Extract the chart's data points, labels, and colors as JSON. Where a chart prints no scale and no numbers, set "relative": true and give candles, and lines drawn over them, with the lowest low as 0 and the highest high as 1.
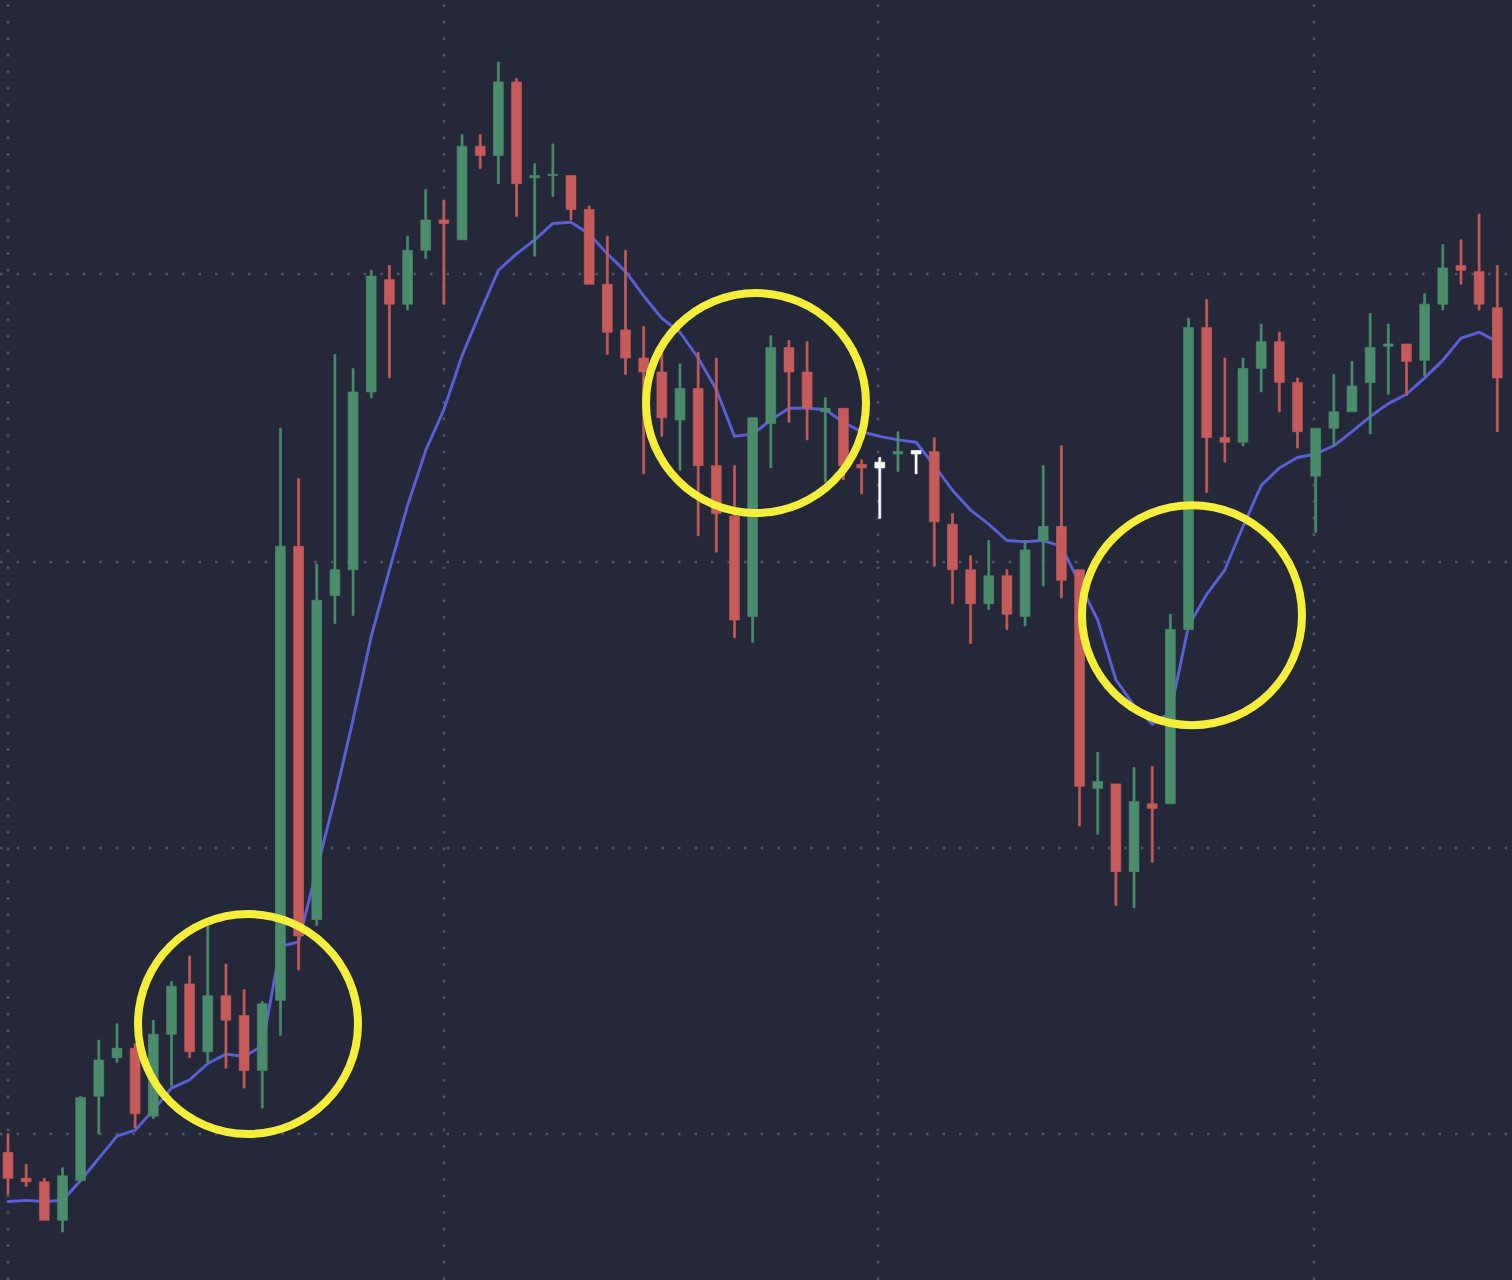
{
  "chart_data": {
    "type": "candlestick",
    "relative": true,
    "grid": true,
    "categories": [
      null,
      null,
      null,
      null,
      null,
      null,
      null,
      null,
      null,
      null,
      null,
      null,
      null,
      null,
      null,
      null,
      null,
      null,
      null,
      null,
      null,
      null,
      null,
      null,
      null,
      null,
      null,
      null,
      null,
      null,
      null,
      null,
      null,
      null,
      null,
      null,
      null,
      null,
      null,
      null,
      null,
      null,
      null,
      null,
      null,
      null,
      null,
      null,
      null,
      null,
      null,
      null,
      null,
      null,
      null,
      null,
      null,
      null,
      null,
      null,
      null,
      null,
      null,
      null,
      null,
      null,
      null,
      null,
      null,
      null,
      null,
      null,
      null,
      null,
      null,
      null,
      null,
      null,
      null,
      null,
      null,
      null,
      null
    ],
    "ohlc": [
      [
        0.068,
        0.084,
        0.032,
        0.046
      ],
      [
        0.046,
        0.058,
        0.039,
        0.043
      ],
      [
        0.043,
        0.046,
        0.01,
        0.01
      ],
      [
        0.01,
        0.055,
        0,
        0.048
      ],
      [
        0.044,
        0.116,
        0.043,
        0.115
      ],
      [
        0.116,
        0.164,
        0.084,
        0.147
      ],
      [
        0.149,
        0.178,
        0.145,
        0.157
      ],
      [
        0.157,
        0.161,
        0.089,
        0.101
      ],
      [
        0.099,
        0.181,
        0.097,
        0.169
      ],
      [
        0.169,
        0.214,
        0.125,
        0.21
      ],
      [
        0.212,
        0.236,
        0.149,
        0.154
      ],
      [
        0.154,
        0.262,
        0.145,
        0.202
      ],
      [
        0.202,
        0.229,
        0.14,
        0.181
      ],
      [
        0.185,
        0.207,
        0.123,
        0.138
      ],
      [
        0.138,
        0.197,
        0.106,
        0.195
      ],
      [
        0.198,
        0.687,
        0.168,
        0.586
      ],
      [
        0.586,
        0.644,
        0.224,
        0.253
      ],
      [
        0.267,
        0.571,
        0.262,
        0.54
      ],
      [
        0.544,
        0.75,
        0.52,
        0.566
      ],
      [
        0.566,
        0.738,
        0.527,
        0.718
      ],
      [
        0.718,
        0.822,
        0.713,
        0.817
      ],
      [
        0.814,
        0.826,
        0.73,
        0.793
      ],
      [
        0.793,
        0.851,
        0.788,
        0.839
      ],
      [
        0.839,
        0.891,
        0.832,
        0.865
      ],
      [
        0.865,
        0.882,
        0.793,
        0.862
      ],
      [
        0.848,
        0.938,
        0.848,
        0.928
      ],
      [
        0.928,
        0.938,
        0.909,
        0.92
      ],
      [
        0.92,
        1,
        0.896,
        0.983
      ],
      [
        0.983,
        0.986,
        0.868,
        0.896
      ],
      [
        0.901,
        0.913,
        0.834,
        0.903
      ],
      [
        0.903,
        0.93,
        0.885,
        0.904
      ],
      [
        0.903,
        0.903,
        0.865,
        0.874
      ],
      [
        0.874,
        0.877,
        0.81,
        0.81
      ],
      [
        0.81,
        0.851,
        0.75,
        0.769
      ],
      [
        0.771,
        0.839,
        0.733,
        0.747
      ],
      [
        0.747,
        0.774,
        0.648,
        0.735
      ],
      [
        0.735,
        0.757,
        0.68,
        0.696
      ],
      [
        0.694,
        0.742,
        0.651,
        0.721
      ],
      [
        0.721,
        0.752,
        0.595,
        0.655
      ],
      [
        0.655,
        0.747,
        0.581,
        0.614
      ],
      [
        0.612,
        0.655,
        0.508,
        0.523
      ],
      [
        0.526,
        0.696,
        0.504,
        0.696
      ],
      [
        0.691,
        0.766,
        0.653,
        0.756
      ],
      [
        0.756,
        0.762,
        0.692,
        0.735
      ],
      [
        0.735,
        0.761,
        0.677,
        0.704
      ],
      [
        0.701,
        0.713,
        0.641,
        0.704
      ],
      [
        0.704,
        0.704,
        0.643,
        0.655
      ],
      [
        0.656,
        0.66,
        0.631,
        0.653
      ],
      [
        0.653,
        0.662,
        0.61,
        0.658
      ],
      [
        0.665,
        0.684,
        0.65,
        0.667
      ],
      [
        0.665,
        0.668,
        0.648,
        0.668
      ],
      [
        0.667,
        0.679,
        0.569,
        0.607
      ],
      [
        0.605,
        0.614,
        0.537,
        0.566
      ],
      [
        0.566,
        0.578,
        0.503,
        0.537
      ],
      [
        0.537,
        0.591,
        0.532,
        0.561
      ],
      [
        0.561,
        0.566,
        0.515,
        0.528
      ],
      [
        0.526,
        0.591,
        0.518,
        0.583
      ],
      [
        0.591,
        0.655,
        0.552,
        0.603
      ],
      [
        0.603,
        0.672,
        0.542,
        0.557
      ],
      [
        0.566,
        0.566,
        0.347,
        0.381
      ],
      [
        0.379,
        0.41,
        0.34,
        0.385
      ],
      [
        0.383,
        0.383,
        0.279,
        0.308
      ],
      [
        0.308,
        0.397,
        0.277,
        0.368
      ],
      [
        0.366,
        0.398,
        0.316,
        0.362
      ],
      [
        0.366,
        0.528,
        0.366,
        0.515
      ],
      [
        0.515,
        0.781,
        0.515,
        0.773
      ],
      [
        0.773,
        0.797,
        0.632,
        0.679
      ],
      [
        0.679,
        0.747,
        0.658,
        0.675
      ],
      [
        0.675,
        0.747,
        0.672,
        0.738
      ],
      [
        0.738,
        0.776,
        0.718,
        0.761
      ],
      [
        0.761,
        0.769,
        0.701,
        0.726
      ],
      [
        0.726,
        0.73,
        0.67,
        0.684
      ],
      [
        0.646,
        0.687,
        0.598,
        0.687
      ],
      [
        0.687,
        0.733,
        0.672,
        0.701
      ],
      [
        0.701,
        0.744,
        0.701,
        0.723
      ],
      [
        0.726,
        0.785,
        0.682,
        0.756
      ],
      [
        0.757,
        0.776,
        0.716,
        0.759
      ],
      [
        0.759,
        0.759,
        0.715,
        0.744
      ],
      [
        0.745,
        0.802,
        0.732,
        0.793
      ],
      [
        0.793,
        0.844,
        0.788,
        0.824
      ],
      [
        0.826,
        0.848,
        0.81,
        0.822
      ],
      [
        0.821,
        0.87,
        0.788,
        0.793
      ],
      [
        0.79,
        0.826,
        0.684,
        0.73
      ]
    ],
    "colors": [
      "#c65b5b",
      "#c65b5b",
      "#c65b5b",
      "#4b8c6d",
      "#4b8c6d",
      "#4b8c6d",
      "#4b8c6d",
      "#c65b5b",
      "#4b8c6d",
      "#4b8c6d",
      "#c65b5b",
      "#4b8c6d",
      "#c65b5b",
      "#c65b5b",
      "#4b8c6d",
      "#4b8c6d",
      "#c65b5b",
      "#4b8c6d",
      "#4b8c6d",
      "#4b8c6d",
      "#4b8c6d",
      "#c65b5b",
      "#4b8c6d",
      "#4b8c6d",
      "#c65b5b",
      "#4b8c6d",
      "#c65b5b",
      "#4b8c6d",
      "#c65b5b",
      "#4b8c6d",
      "#4b8c6d",
      "#c65b5b",
      "#c65b5b",
      "#c65b5b",
      "#c65b5b",
      "#c65b5b",
      "#c65b5b",
      "#4b8c6d",
      "#c65b5b",
      "#c65b5b",
      "#c65b5b",
      "#4b8c6d",
      "#4b8c6d",
      "#c65b5b",
      "#c65b5b",
      "#4b8c6d",
      "#c65b5b",
      "#c65b5b",
      "#ffffff",
      "#4b8c6d",
      "#ffffff",
      "#c65b5b",
      "#c65b5b",
      "#c65b5b",
      "#4b8c6d",
      "#c65b5b",
      "#4b8c6d",
      "#4b8c6d",
      "#c65b5b",
      "#c65b5b",
      "#4b8c6d",
      "#c65b5b",
      "#4b8c6d",
      "#c65b5b",
      "#4b8c6d",
      "#4b8c6d",
      "#c65b5b",
      "#c65b5b",
      "#4b8c6d",
      "#4b8c6d",
      "#c65b5b",
      "#c65b5b",
      "#4b8c6d",
      "#4b8c6d",
      "#4b8c6d",
      "#4b8c6d",
      "#4b8c6d",
      "#c65b5b",
      "#4b8c6d",
      "#4b8c6d",
      "#c65b5b",
      "#c65b5b",
      "#c65b5b"
    ],
    "series": [
      {
        "type": "line",
        "color": "#5a5fd6",
        "values": [
          0.026,
          0.027,
          0.026,
          0.027,
          0.044,
          0.063,
          0.082,
          0.087,
          0.104,
          0.123,
          0.13,
          0.144,
          0.152,
          0.15,
          0.159,
          0.244,
          0.248,
          null,
          0.371,
          0.438,
          0.509,
          0.566,
          0.621,
          0.668,
          0.703,
          0.749,
          0.786,
          0.822,
          0.836,
          0.848,
          0.862,
          0.863,
          0.853,
          0.836,
          0.821,
          0.8,
          0.781,
          0.769,
          0.747,
          0.72,
          0.68,
          0.682,
          0.694,
          0.704,
          0.704,
          0.703,
          0.692,
          0.684,
          0.68,
          0.677,
          0.675,
          0.655,
          0.634,
          0.617,
          0.605,
          0.591,
          0.59,
          0.591,
          0.586,
          null,
          0.523,
          0.472,
          0.45,
          0.434,
          0.444,
          0.518,
          0.545,
          0.566,
          0.603,
          0.638,
          0.653,
          0.662,
          0.665,
          0.672,
          0.684,
          0.697,
          0.708,
          0.716,
          0.73,
          0.745,
          0.764,
          0.769,
          0.761
        ]
      }
    ]
  }
}
